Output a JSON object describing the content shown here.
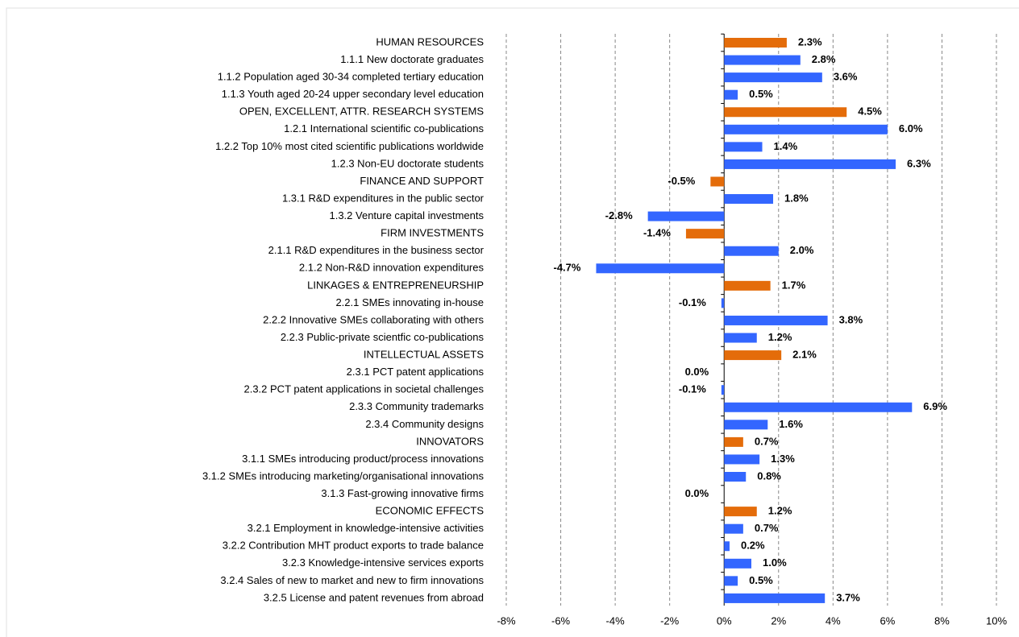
{
  "chart_data": {
    "type": "hbar",
    "categories": [
      "HUMAN RESOURCES",
      "1.1.1 New doctorate graduates",
      "1.1.2 Population aged 30-34 completed tertiary education",
      "1.1.3 Youth aged 20-24 upper secondary level education",
      "OPEN, EXCELLENT, ATTR. RESEARCH SYSTEMS",
      "1.2.1 International scientific co-publications",
      "1.2.2 Top 10% most cited scientific publications worldwide",
      "1.2.3 Non-EU doctorate students",
      "FINANCE AND SUPPORT",
      "1.3.1 R&D expenditures in the public sector",
      "1.3.2 Venture capital investments",
      "FIRM INVESTMENTS",
      "2.1.1 R&D expenditures in the business sector",
      "2.1.2 Non-R&D innovation expenditures",
      "LINKAGES & ENTREPRENEURSHIP",
      "2.2.1 SMEs innovating in-house",
      "2.2.2 Innovative SMEs collaborating with others",
      "2.2.3 Public-private scientfic co-publications",
      "INTELLECTUAL ASSETS",
      "2.3.1 PCT patent applications",
      "2.3.2 PCT patent applications in societal challenges",
      "2.3.3 Community trademarks",
      "2.3.4 Community designs",
      "INNOVATORS",
      "3.1.1 SMEs introducing product/process innovations",
      "3.1.2 SMEs introducing marketing/organisational innovations",
      "3.1.3 Fast-growing innovative firms",
      "ECONOMIC EFFECTS",
      "3.2.1 Employment in knowledge-intensive activities",
      "3.2.2 Contribution MHT product exports to trade balance",
      "3.2.3 Knowledge-intensive services exports",
      "3.2.4 Sales of new to market and new to firm innovations",
      "3.2.5 License and patent revenues from abroad"
    ],
    "values": [
      2.3,
      2.8,
      3.6,
      0.5,
      4.5,
      6.0,
      1.4,
      6.3,
      -0.5,
      1.8,
      -2.8,
      -1.4,
      2.0,
      -4.7,
      1.7,
      -0.1,
      3.8,
      1.2,
      2.1,
      0.0,
      -0.1,
      6.9,
      1.6,
      0.7,
      1.3,
      0.8,
      0.0,
      1.2,
      0.7,
      0.2,
      1.0,
      0.5,
      3.7
    ],
    "value_labels": [
      "2.3%",
      "2.8%",
      "3.6%",
      "0.5%",
      "4.5%",
      "6.0%",
      "1.4%",
      "6.3%",
      "-0.5%",
      "1.8%",
      "-2.8%",
      "-1.4%",
      "2.0%",
      "-4.7%",
      "1.7%",
      "-0.1%",
      "3.8%",
      "1.2%",
      "2.1%",
      "0.0%",
      "-0.1%",
      "6.9%",
      "1.6%",
      "0.7%",
      "1.3%",
      "0.8%",
      "0.0%",
      "1.2%",
      "0.7%",
      "0.2%",
      "1.0%",
      "0.5%",
      "3.7%"
    ],
    "colors": [
      "#e46c0a",
      "#3366ff",
      "#3366ff",
      "#3366ff",
      "#e46c0a",
      "#3366ff",
      "#3366ff",
      "#3366ff",
      "#e46c0a",
      "#3366ff",
      "#3366ff",
      "#e46c0a",
      "#3366ff",
      "#3366ff",
      "#e46c0a",
      "#3366ff",
      "#3366ff",
      "#3366ff",
      "#e46c0a",
      "#3366ff",
      "#3366ff",
      "#3366ff",
      "#3366ff",
      "#e46c0a",
      "#3366ff",
      "#3366ff",
      "#3366ff",
      "#e46c0a",
      "#3366ff",
      "#3366ff",
      "#3366ff",
      "#3366ff",
      "#3366ff"
    ],
    "xlim": [
      -8,
      10
    ],
    "xticks": [
      {
        "value": -8,
        "label": "-8%"
      },
      {
        "value": -6,
        "label": "-6%"
      },
      {
        "value": -4,
        "label": "-4%"
      },
      {
        "value": -2,
        "label": "-2%"
      },
      {
        "value": 0,
        "label": "0%"
      },
      {
        "value": 2,
        "label": "2%"
      },
      {
        "value": 4,
        "label": "4%"
      },
      {
        "value": 6,
        "label": "6%"
      },
      {
        "value": 8,
        "label": "8%"
      },
      {
        "value": 10,
        "label": "10%"
      }
    ],
    "grid": true
  }
}
